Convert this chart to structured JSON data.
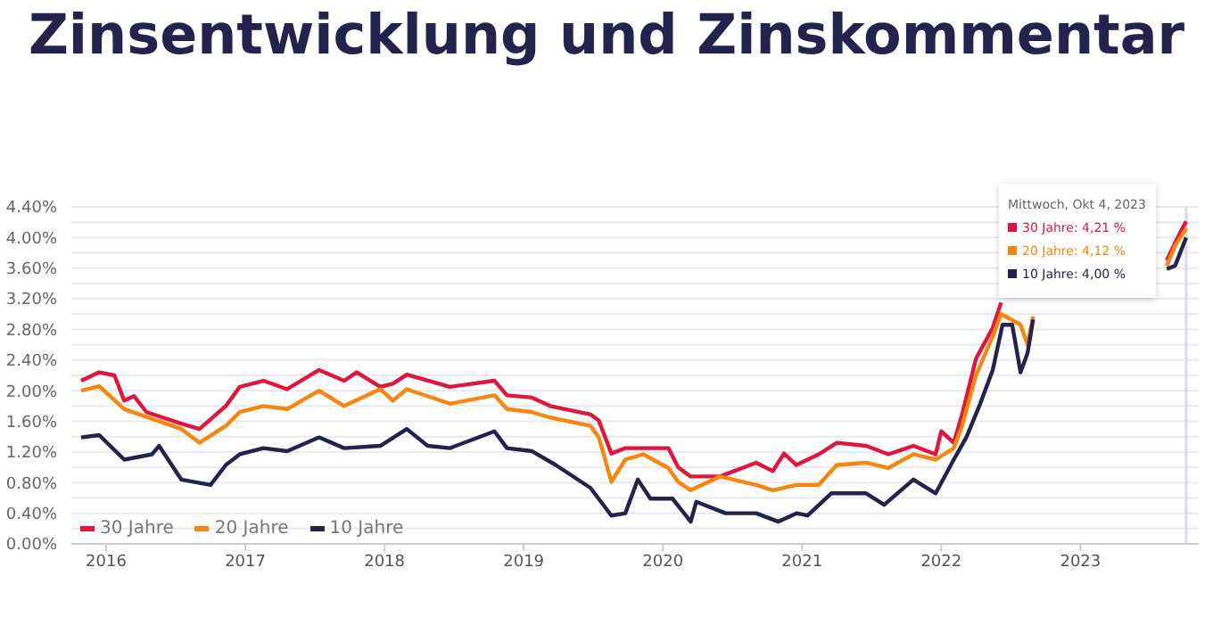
{
  "chart_data": {
    "type": "line",
    "title": "Zinsentwicklung und Zinskommentar",
    "xlim": [
      2015.75,
      2023.85
    ],
    "xticks": [
      2016,
      2017,
      2018,
      2019,
      2020,
      2021,
      2022,
      2023
    ],
    "ylim": [
      0,
      4.4
    ],
    "yticks": [
      {
        "value": 0,
        "label": "0.00%"
      },
      {
        "value": 0.2,
        "label": null
      },
      {
        "value": 0.4,
        "label": "0.40%"
      },
      {
        "value": 0.6,
        "label": null
      },
      {
        "value": 0.8,
        "label": "0.80%"
      },
      {
        "value": 1.0,
        "label": null
      },
      {
        "value": 1.2,
        "label": "1.20%"
      },
      {
        "value": 1.4,
        "label": null
      },
      {
        "value": 1.6,
        "label": "1.60%"
      },
      {
        "value": 1.8,
        "label": null
      },
      {
        "value": 2.0,
        "label": "2.00%"
      },
      {
        "value": 2.2,
        "label": null
      },
      {
        "value": 2.4,
        "label": "2.40%"
      },
      {
        "value": 2.6,
        "label": null
      },
      {
        "value": 2.8,
        "label": "2.80%"
      },
      {
        "value": 3.0,
        "label": null
      },
      {
        "value": 3.2,
        "label": "3.20%"
      },
      {
        "value": 3.4,
        "label": null
      },
      {
        "value": 3.6,
        "label": "3.60%"
      },
      {
        "value": 3.8,
        "label": null
      },
      {
        "value": 4.0,
        "label": "4.00%"
      },
      {
        "value": 4.2,
        "label": null
      },
      {
        "value": 4.4,
        "label": "4.40%"
      }
    ],
    "grid": "y",
    "legend": "bottom left",
    "marker": "none",
    "line_style": "solid",
    "ref_lines": [
      {
        "axis": "x",
        "value": 2023.76,
        "color": "#d8dbe3"
      }
    ],
    "annotations": [
      "Mittwoch, Okt 4, 2023",
      "30 Jahre: 4,21 %",
      "20 Jahre: 4,12 %",
      "10 Jahre: 4,00 %"
    ],
    "series": [
      {
        "name": "30 Jahre",
        "color": "#e0173d",
        "x": [
          2015.82,
          2015.95,
          2016.06,
          2016.13,
          2016.2,
          2016.29,
          2016.54,
          2016.67,
          2016.86,
          2016.96,
          2017.13,
          2017.3,
          2017.53,
          2017.71,
          2017.8,
          2017.97,
          2018.06,
          2018.16,
          2018.47,
          2018.79,
          2018.88,
          2019.06,
          2019.19,
          2019.48,
          2019.54,
          2019.63,
          2019.73,
          2019.86,
          2020.04,
          2020.11,
          2020.2,
          2020.41,
          2020.67,
          2020.79,
          2020.87,
          2020.96,
          2021.12,
          2021.25,
          2021.46,
          2021.62,
          2021.8,
          2021.96,
          2022.0,
          2022.09,
          2022.15,
          2022.25,
          2022.37,
          2022.43,
          2022.5,
          2023.62,
          2023.68,
          2023.73,
          2023.76
        ],
        "values": [
          2.13,
          2.24,
          2.2,
          1.87,
          1.93,
          1.72,
          1.57,
          1.5,
          1.8,
          2.05,
          2.13,
          2.02,
          2.27,
          2.13,
          2.24,
          2.05,
          2.09,
          2.21,
          2.05,
          2.13,
          1.94,
          1.91,
          1.8,
          1.69,
          1.61,
          1.18,
          1.25,
          1.25,
          1.25,
          1.0,
          0.88,
          0.88,
          1.06,
          0.95,
          1.18,
          1.03,
          1.17,
          1.32,
          1.28,
          1.17,
          1.28,
          1.17,
          1.47,
          1.32,
          1.69,
          2.42,
          2.82,
          3.15,
          null,
          3.7,
          3.93,
          4.11,
          4.21
        ]
      },
      {
        "name": "20 Jahre",
        "color": "#f7860f",
        "x": [
          2015.82,
          2015.95,
          2016.13,
          2016.54,
          2016.67,
          2016.86,
          2016.96,
          2017.13,
          2017.3,
          2017.53,
          2017.71,
          2017.97,
          2018.06,
          2018.16,
          2018.47,
          2018.79,
          2018.88,
          2019.06,
          2019.19,
          2019.48,
          2019.54,
          2019.63,
          2019.73,
          2019.86,
          2020.04,
          2020.11,
          2020.2,
          2020.41,
          2020.67,
          2020.79,
          2020.96,
          2021.12,
          2021.25,
          2021.46,
          2021.62,
          2021.8,
          2021.96,
          2022.09,
          2022.15,
          2022.25,
          2022.37,
          2022.43,
          2022.57,
          2022.62,
          2022.66,
          2022.7,
          2023.62,
          2023.68,
          2023.76
        ],
        "values": [
          2.0,
          2.06,
          1.76,
          1.5,
          1.32,
          1.54,
          1.72,
          1.8,
          1.76,
          2.0,
          1.8,
          2.02,
          1.87,
          2.02,
          1.83,
          1.94,
          1.76,
          1.72,
          1.65,
          1.54,
          1.39,
          0.81,
          1.1,
          1.17,
          0.99,
          0.81,
          0.7,
          0.88,
          0.77,
          0.7,
          0.77,
          0.77,
          1.03,
          1.06,
          0.99,
          1.17,
          1.1,
          1.25,
          1.54,
          2.2,
          2.71,
          3.0,
          2.86,
          2.6,
          2.97,
          null,
          3.63,
          3.89,
          4.12
        ]
      },
      {
        "name": "10 Jahre",
        "color": "#23244d",
        "x": [
          2015.82,
          2015.95,
          2016.13,
          2016.33,
          2016.38,
          2016.54,
          2016.75,
          2016.86,
          2016.96,
          2017.13,
          2017.3,
          2017.53,
          2017.71,
          2017.97,
          2018.16,
          2018.31,
          2018.47,
          2018.79,
          2018.88,
          2019.06,
          2019.23,
          2019.48,
          2019.63,
          2019.73,
          2019.82,
          2019.91,
          2020.07,
          2020.2,
          2020.24,
          2020.45,
          2020.67,
          2020.83,
          2020.96,
          2021.04,
          2021.21,
          2021.46,
          2021.59,
          2021.8,
          2021.96,
          2022.09,
          2022.18,
          2022.28,
          2022.37,
          2022.44,
          2022.51,
          2022.57,
          2022.62,
          2022.66,
          2022.7,
          2023.62,
          2023.68,
          2023.76
        ],
        "values": [
          1.39,
          1.42,
          1.1,
          1.17,
          1.28,
          0.84,
          0.77,
          1.03,
          1.17,
          1.25,
          1.21,
          1.39,
          1.25,
          1.28,
          1.5,
          1.28,
          1.25,
          1.47,
          1.25,
          1.21,
          1.03,
          0.73,
          0.37,
          0.4,
          0.84,
          0.59,
          0.59,
          0.29,
          0.55,
          0.4,
          0.4,
          0.29,
          0.4,
          0.37,
          0.66,
          0.66,
          0.51,
          0.84,
          0.66,
          1.1,
          1.39,
          1.83,
          2.27,
          2.86,
          2.86,
          2.24,
          2.49,
          2.93,
          null,
          3.59,
          3.63,
          4.0
        ]
      }
    ]
  }
}
